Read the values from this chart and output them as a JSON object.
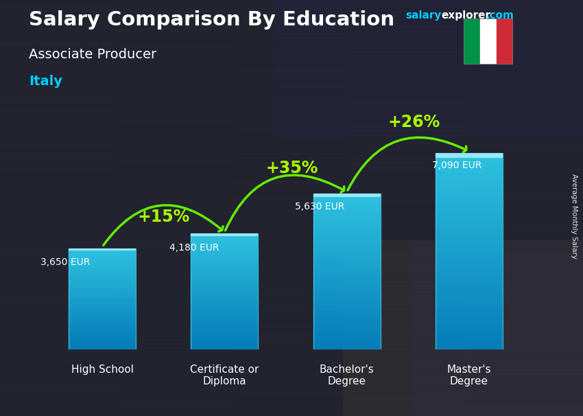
{
  "title": "Salary Comparison By Education",
  "subtitle": "Associate Producer",
  "country": "Italy",
  "ylabel": "Average Monthly Salary",
  "categories": [
    "High School",
    "Certificate or\nDiploma",
    "Bachelor's\nDegree",
    "Master's\nDegree"
  ],
  "values": [
    3650,
    4180,
    5630,
    7090
  ],
  "value_labels": [
    "3,650 EUR",
    "4,180 EUR",
    "5,630 EUR",
    "7,090 EUR"
  ],
  "pct_labels": [
    "+15%",
    "+35%",
    "+26%"
  ],
  "bar_color_top": "#30d8f8",
  "bar_color_bottom": "#0088cc",
  "arrow_color": "#66ee00",
  "pct_color": "#aaff00",
  "title_color": "#ffffff",
  "subtitle_color": "#ffffff",
  "country_color": "#00ccff",
  "value_label_color": "#ffffff",
  "ylim": [
    0,
    9000
  ],
  "bar_width": 0.55,
  "flag_green": "#009246",
  "flag_white": "#ffffff",
  "flag_red": "#ce2b37",
  "bg_color": "#2a2a3a",
  "brand_salary_color": "#00ccff",
  "brand_explorer_color": "#ffffff",
  "brand_dot_com_color": "#00ccff"
}
